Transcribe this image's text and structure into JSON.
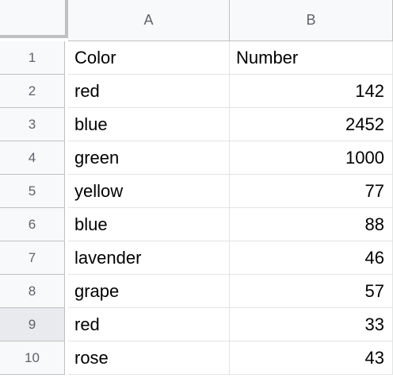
{
  "columns": [
    "A",
    "B"
  ],
  "rows": [
    {
      "row": "1",
      "a": "Color",
      "b": "Number",
      "b_numeric": false
    },
    {
      "row": "2",
      "a": "red",
      "b": "142",
      "b_numeric": true
    },
    {
      "row": "3",
      "a": "blue",
      "b": "2452",
      "b_numeric": true
    },
    {
      "row": "4",
      "a": "green",
      "b": "1000",
      "b_numeric": true
    },
    {
      "row": "5",
      "a": "yellow",
      "b": "77",
      "b_numeric": true
    },
    {
      "row": "6",
      "a": "blue",
      "b": "88",
      "b_numeric": true
    },
    {
      "row": "7",
      "a": "lavender",
      "b": "46",
      "b_numeric": true
    },
    {
      "row": "8",
      "a": "grape",
      "b": "57",
      "b_numeric": true
    },
    {
      "row": "9",
      "a": "red",
      "b": "33",
      "b_numeric": true
    },
    {
      "row": "10",
      "a": "rose",
      "b": "43",
      "b_numeric": true
    }
  ],
  "selected_row": "9",
  "colors": {
    "header_bg": "#f8f9fa",
    "header_text": "#5f6368",
    "grid_line": "#e2e3e3",
    "selected_row_header": "#e8eaed"
  }
}
